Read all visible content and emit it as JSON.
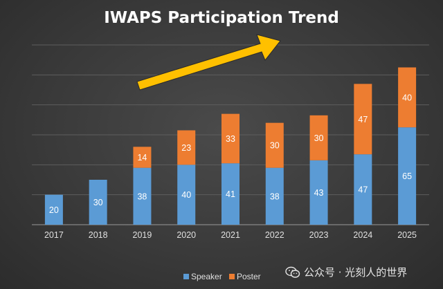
{
  "chart_data": {
    "type": "bar",
    "stacked": true,
    "title": "IWAPS Participation Trend",
    "categories": [
      "2017",
      "2018",
      "2019",
      "2020",
      "2021",
      "2022",
      "2023",
      "2024",
      "2025"
    ],
    "series": [
      {
        "name": "Speaker",
        "color": "#5b9bd5",
        "values": [
          20,
          30,
          38,
          40,
          41,
          38,
          43,
          47,
          65
        ]
      },
      {
        "name": "Poster",
        "color": "#ed7d31",
        "values": [
          null,
          null,
          14,
          23,
          33,
          30,
          30,
          47,
          40
        ]
      }
    ],
    "ylim": [
      0,
      120
    ],
    "ytick_step": 20,
    "grid": true,
    "legend": "bottom-center",
    "xlabel": "",
    "ylabel": "",
    "annotation": "upward-trend-arrow",
    "arrow_color": "#ffc000"
  },
  "watermark": {
    "text": "公众号 · 光刻人的世界",
    "icon": "wechat-icon"
  }
}
